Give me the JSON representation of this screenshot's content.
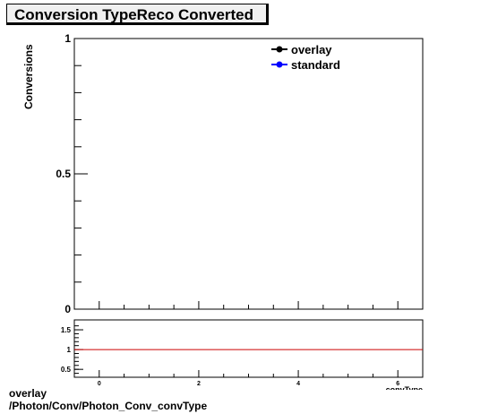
{
  "title": "Conversion TypeReco Converted",
  "ylabel": "Conversions",
  "legend": [
    {
      "label": "overlay",
      "color": "#000000"
    },
    {
      "label": "standard",
      "color": "#0000ff"
    }
  ],
  "xlabel_partial": "convType",
  "footer": {
    "line1": "overlay",
    "line2": "/Photon/Conv/Photon_Conv_convType"
  },
  "chart_data": [
    {
      "type": "line",
      "title": "Conversion TypeReco Converted",
      "ylabel": "Conversions",
      "ylim": [
        0,
        1
      ],
      "xlim": [
        -0.5,
        6.5
      ],
      "yticks": [
        0,
        0.5,
        1
      ],
      "ytick_labels": [
        "0",
        "0.5",
        "1"
      ],
      "legend_position": "top-right",
      "series": [
        {
          "name": "overlay",
          "color": "#000000",
          "x": [],
          "y": []
        },
        {
          "name": "standard",
          "color": "#0000ff",
          "x": [],
          "y": []
        }
      ]
    },
    {
      "type": "line",
      "xlabel": "convType",
      "ylim": [
        0.3,
        1.75
      ],
      "xlim": [
        -0.5,
        6.5
      ],
      "xticks": [
        0,
        2,
        4,
        6
      ],
      "xtick_labels": [
        "0",
        "2",
        "4",
        "6"
      ],
      "yticks": [
        0.5,
        1,
        1.5
      ],
      "ytick_labels": [
        "0.5",
        "1",
        "1.5"
      ],
      "reference_line": {
        "y": 1,
        "color": "#cc0000"
      }
    }
  ]
}
